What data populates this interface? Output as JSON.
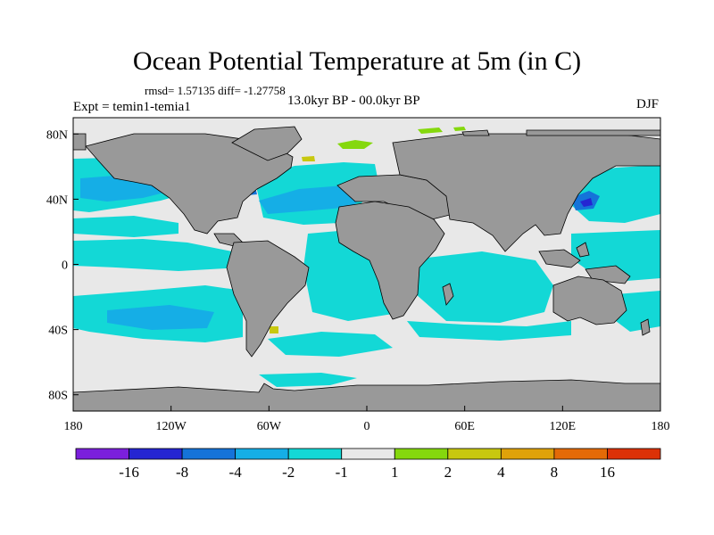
{
  "title": "Ocean Potential Temperature at 5m (in C)",
  "stats": "rmsd= 1.57135  diff= -1.27758",
  "experiment": "Expt = temin1-temia1",
  "period": "13.0kyr BP - 00.0kyr BP",
  "season": "DJF",
  "colors": {
    "land": "#999999",
    "neutral_ocean": "#e8e8e8",
    "cyan": "#13d8d6",
    "sky": "#15aee6",
    "blue": "#1573d9",
    "deep_blue": "#2525d2",
    "purple": "#7b1fdc",
    "green": "#85d80d",
    "yellow": "#c8c80f"
  },
  "map": {
    "lon_range": [
      -180,
      180
    ],
    "lat_range": [
      -90,
      90
    ],
    "x_ticks": [
      {
        "lon": -180,
        "label": "180"
      },
      {
        "lon": -120,
        "label": "120W"
      },
      {
        "lon": -60,
        "label": "60W"
      },
      {
        "lon": 0,
        "label": "0"
      },
      {
        "lon": 60,
        "label": "60E"
      },
      {
        "lon": 120,
        "label": "120E"
      },
      {
        "lon": 180,
        "label": "180"
      }
    ],
    "y_ticks": [
      {
        "lat": 80,
        "label": "80N"
      },
      {
        "lat": 40,
        "label": "40N"
      },
      {
        "lat": 0,
        "label": "0"
      },
      {
        "lat": -40,
        "label": "40S"
      },
      {
        "lat": -80,
        "label": "80S"
      }
    ]
  },
  "colorbar": {
    "bins": [
      "#7b1fdc",
      "#2525d2",
      "#1573d9",
      "#15aee6",
      "#13d8d6",
      "#e8e8e8",
      "#85d80d",
      "#c8c80f",
      "#e0a20a",
      "#e46a07",
      "#dc3107"
    ],
    "labels": [
      "-16",
      "-8",
      "-4",
      "-2",
      "-1",
      "1",
      "2",
      "4",
      "8",
      "16"
    ]
  }
}
